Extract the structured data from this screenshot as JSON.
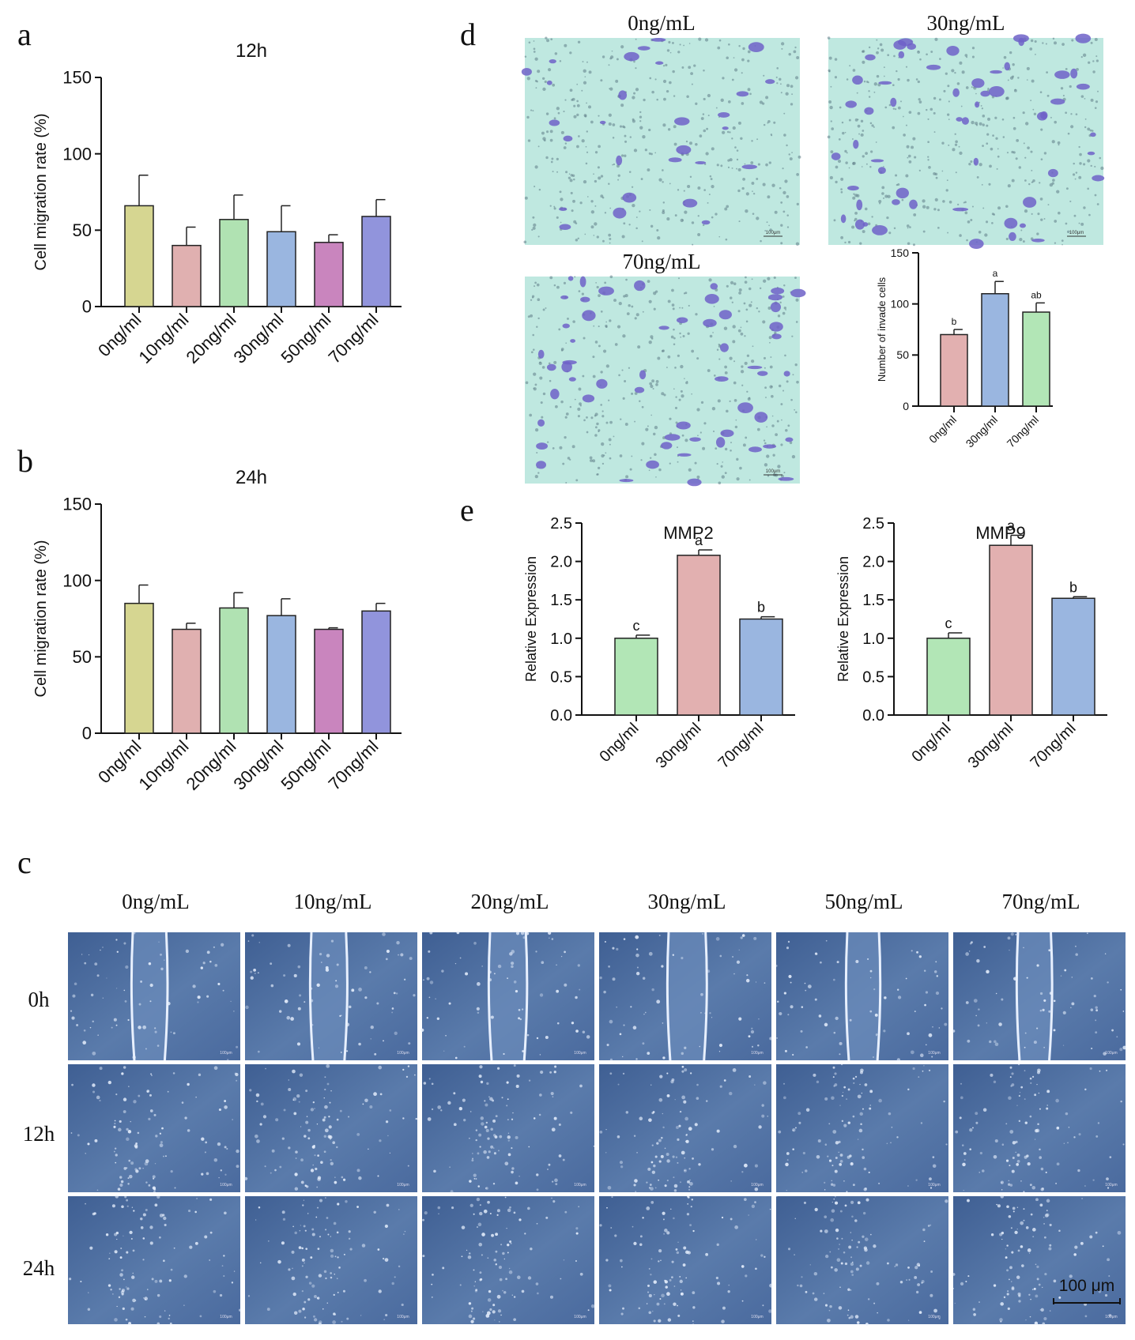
{
  "panels": {
    "a": "a",
    "b": "b",
    "c": "c",
    "d": "d",
    "e": "e"
  },
  "colors": {
    "c0": "#d6d691",
    "c10": "#e0b0b0",
    "c20": "#b0e2b2",
    "c30": "#9ab6e0",
    "c50": "#c985be",
    "c70": "#9194dc",
    "pink": "#e2b0b0",
    "blue": "#9ab6e0",
    "green": "#b2e6b6",
    "transwell_bg": "#bfe8e0",
    "transwell_dot": "#6f62c8",
    "scratch_bg": "#4d6d9e"
  },
  "chart_data": [
    {
      "id": "a",
      "type": "bar",
      "title": "12h",
      "ylabel": "Cell migration rate (%)",
      "xlabel": "",
      "ylim": [
        0,
        150
      ],
      "yticks": [
        0,
        50,
        100,
        150
      ],
      "categories": [
        "0ng/ml",
        "10ng/ml",
        "20ng/ml",
        "30ng/ml",
        "50ng/ml",
        "70ng/ml"
      ],
      "values": [
        66,
        40,
        57,
        49,
        42,
        59
      ],
      "errors": [
        20,
        12,
        16,
        17,
        5,
        11
      ],
      "colors": [
        "#d6d691",
        "#e0b0b0",
        "#b0e2b2",
        "#9ab6e0",
        "#c985be",
        "#9194dc"
      ]
    },
    {
      "id": "b",
      "type": "bar",
      "title": "24h",
      "ylabel": "Cell migration rate (%)",
      "xlabel": "",
      "ylim": [
        0,
        150
      ],
      "yticks": [
        0,
        50,
        100,
        150
      ],
      "categories": [
        "0ng/ml",
        "10ng/ml",
        "20ng/ml",
        "30ng/ml",
        "50ng/ml",
        "70ng/ml"
      ],
      "values": [
        85,
        68,
        82,
        77,
        68,
        80
      ],
      "errors": [
        12,
        4,
        10,
        11,
        1,
        5
      ],
      "colors": [
        "#d6d691",
        "#e0b0b0",
        "#b0e2b2",
        "#9ab6e0",
        "#c985be",
        "#9194dc"
      ]
    },
    {
      "id": "d",
      "type": "bar",
      "title": "",
      "ylabel": "Number of  invade cells",
      "xlabel": "",
      "ylim": [
        0,
        150
      ],
      "yticks": [
        0,
        50,
        100,
        150
      ],
      "categories": [
        "0ng/ml",
        "30ng/ml",
        "70ng/ml"
      ],
      "values": [
        70,
        110,
        92
      ],
      "errors": [
        5,
        12,
        9
      ],
      "sig_labels": [
        "b",
        "a",
        "ab"
      ],
      "colors": [
        "#e2b0b0",
        "#9ab6e0",
        "#b2e6b6"
      ]
    },
    {
      "id": "e1",
      "type": "bar",
      "title": "MMP2",
      "ylabel": "Relative Expression",
      "xlabel": "",
      "ylim": [
        0,
        2.5
      ],
      "yticks": [
        "0.0",
        "0.5",
        "1.0",
        "1.5",
        "2.0",
        "2.5"
      ],
      "categories": [
        "0ng/ml",
        "30ng/ml",
        "70ng/ml"
      ],
      "values": [
        1.0,
        2.08,
        1.25
      ],
      "errors": [
        0.04,
        0.07,
        0.03
      ],
      "sig_labels": [
        "c",
        "a",
        "b"
      ],
      "colors": [
        "#b2e6b6",
        "#e2b0b0",
        "#9ab6e0"
      ]
    },
    {
      "id": "e2",
      "type": "bar",
      "title": "MMP9",
      "ylabel": "Relative Expression",
      "xlabel": "",
      "ylim": [
        0,
        2.5
      ],
      "yticks": [
        "0.0",
        "0.5",
        "1.0",
        "1.5",
        "2.0",
        "2.5"
      ],
      "categories": [
        "0ng/ml",
        "30ng/ml",
        "70ng/ml"
      ],
      "values": [
        1.0,
        2.21,
        1.52
      ],
      "errors": [
        0.07,
        0.13,
        0.02
      ],
      "sig_labels": [
        "c",
        "a",
        "b"
      ],
      "colors": [
        "#b2e6b6",
        "#e2b0b0",
        "#9ab6e0"
      ]
    }
  ],
  "transwell": {
    "labels": [
      "0ng/mL",
      "30ng/mL",
      "70ng/mL"
    ],
    "scale_text": "100μm"
  },
  "scratch": {
    "col_labels": [
      "0ng/mL",
      "10ng/mL",
      "20ng/mL",
      "30ng/mL",
      "50ng/mL",
      "70ng/mL"
    ],
    "row_labels": [
      "0h",
      "12h",
      "24h"
    ],
    "scale_text": "100 μm",
    "micro_scale_text": "100μm"
  }
}
